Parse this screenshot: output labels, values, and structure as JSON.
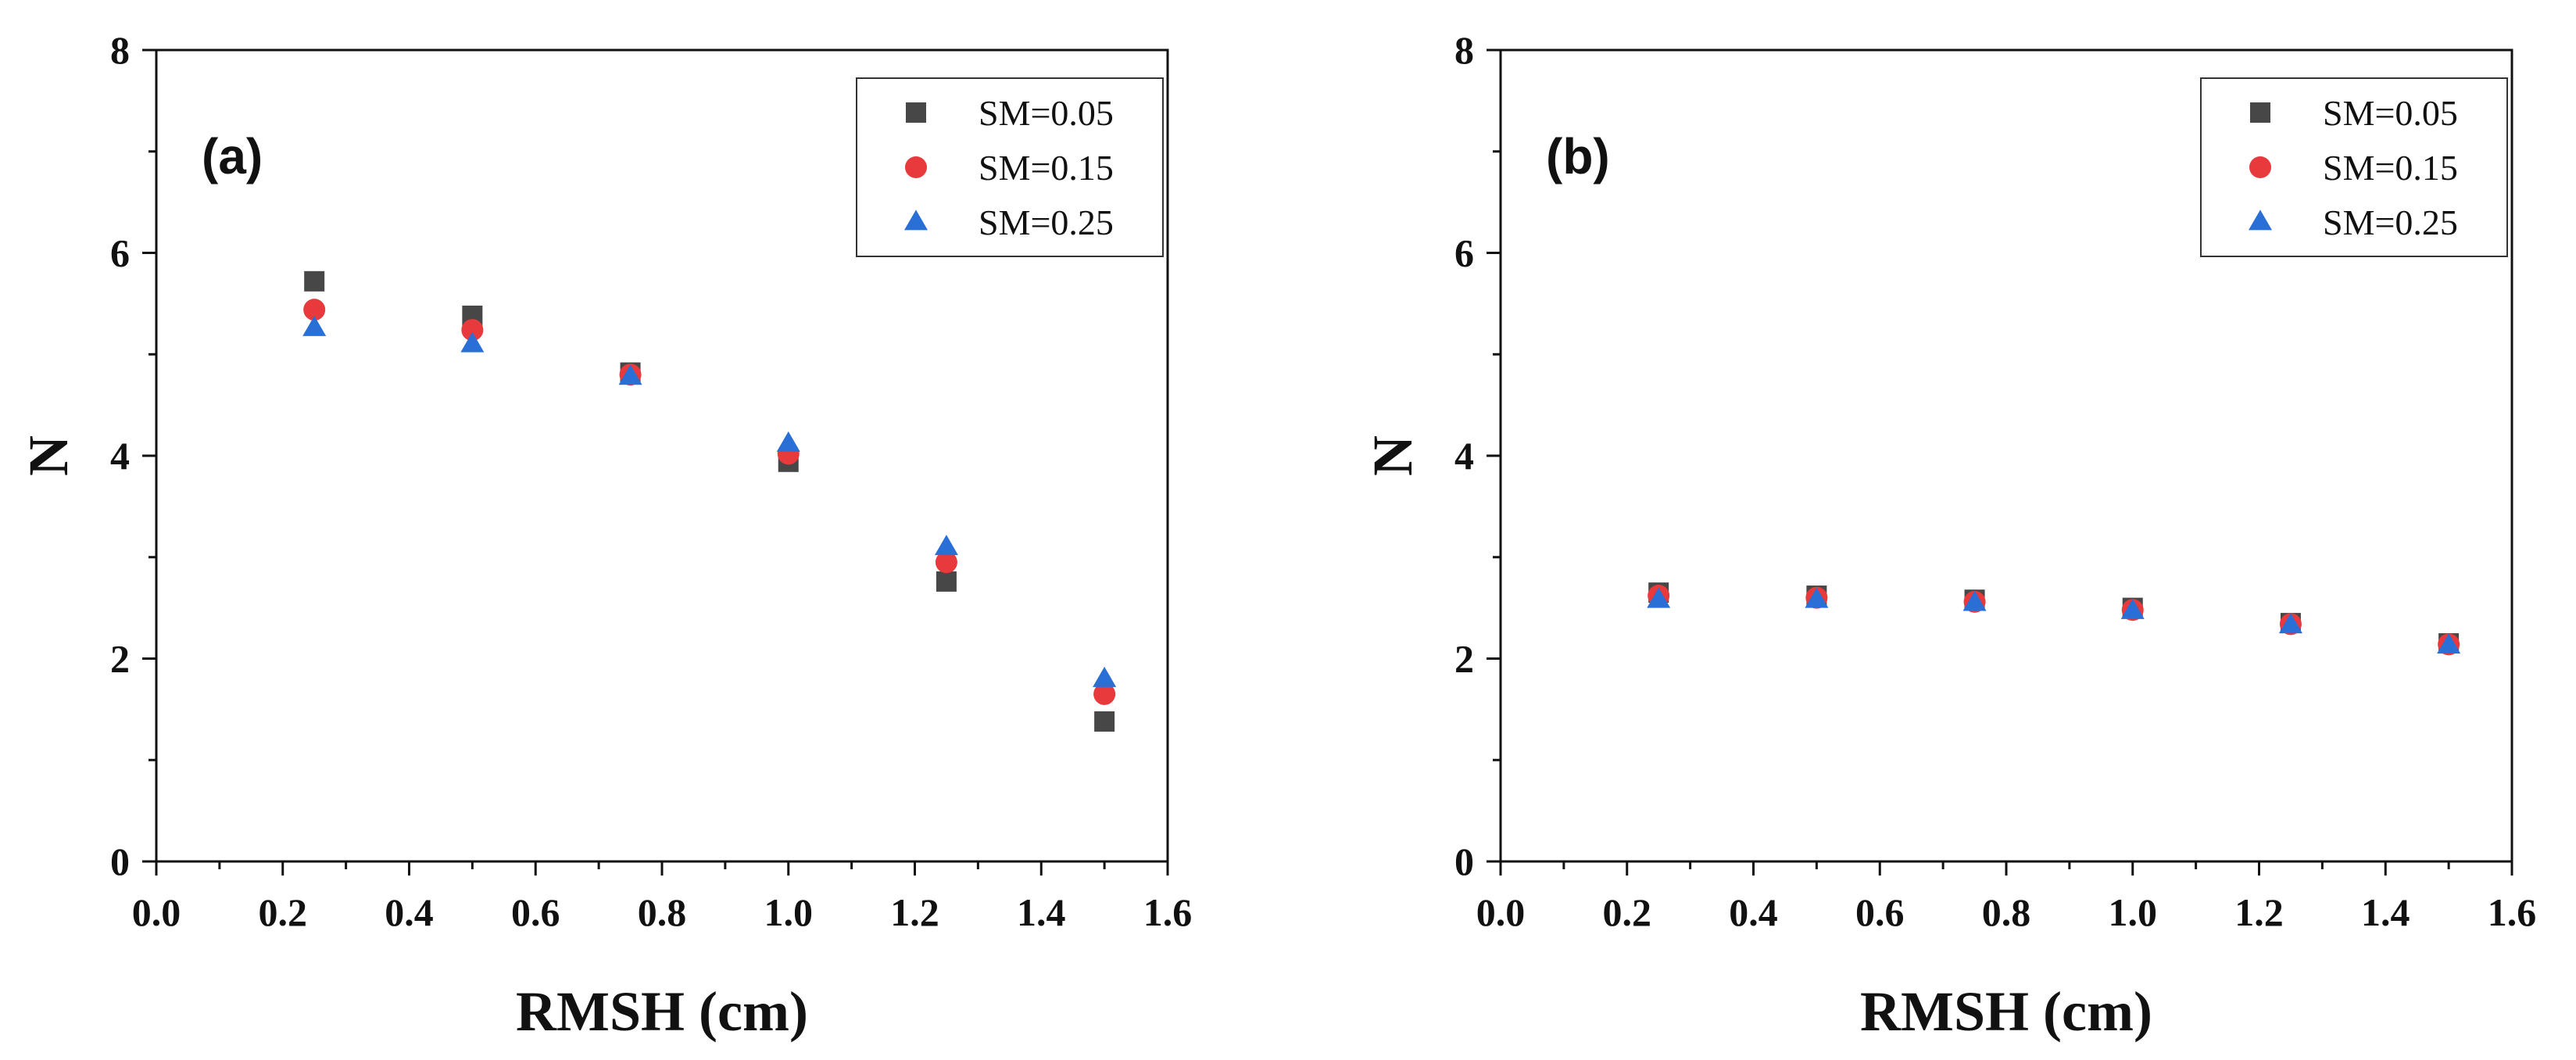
{
  "chart_data": [
    {
      "type": "scatter",
      "panel_label": "(a)",
      "xlabel": "RMSH (cm)",
      "ylabel": "N",
      "xlim": [
        0.0,
        1.6
      ],
      "ylim": [
        0,
        8
      ],
      "x_ticks": [
        0.0,
        0.2,
        0.4,
        0.6,
        0.8,
        1.0,
        1.2,
        1.4,
        1.6
      ],
      "x_tick_labels": [
        "0.0",
        "0.2",
        "0.4",
        "0.6",
        "0.8",
        "1.0",
        "1.2",
        "1.4",
        "1.6"
      ],
      "y_ticks": [
        0,
        2,
        4,
        6,
        8
      ],
      "y_tick_labels": [
        "0",
        "2",
        "4",
        "6",
        "8"
      ],
      "x": [
        0.25,
        0.5,
        0.75,
        1.0,
        1.25,
        1.5
      ],
      "legend_position": "top-right",
      "series": [
        {
          "name": "SM=0.05",
          "marker": "square",
          "color": "#474747",
          "values": [
            5.72,
            5.38,
            4.82,
            3.94,
            2.76,
            1.38
          ]
        },
        {
          "name": "SM=0.15",
          "marker": "circle",
          "color": "#e8393c",
          "values": [
            5.44,
            5.24,
            4.8,
            4.02,
            2.95,
            1.65
          ]
        },
        {
          "name": "SM=0.25",
          "marker": "triangle",
          "color": "#2a6fd6",
          "values": [
            5.26,
            5.1,
            4.78,
            4.12,
            3.1,
            1.8
          ]
        }
      ]
    },
    {
      "type": "scatter",
      "panel_label": "(b)",
      "xlabel": "RMSH (cm)",
      "ylabel": "N",
      "xlim": [
        0.0,
        1.6
      ],
      "ylim": [
        0,
        8
      ],
      "x_ticks": [
        0.0,
        0.2,
        0.4,
        0.6,
        0.8,
        1.0,
        1.2,
        1.4,
        1.6
      ],
      "x_tick_labels": [
        "0.0",
        "0.2",
        "0.4",
        "0.6",
        "0.8",
        "1.0",
        "1.2",
        "1.4",
        "1.6"
      ],
      "y_ticks": [
        0,
        2,
        4,
        6,
        8
      ],
      "y_tick_labels": [
        "0",
        "2",
        "4",
        "6",
        "8"
      ],
      "x": [
        0.25,
        0.5,
        0.75,
        1.0,
        1.25,
        1.5
      ],
      "legend_position": "top-right",
      "series": [
        {
          "name": "SM=0.05",
          "marker": "square",
          "color": "#474747",
          "values": [
            2.65,
            2.62,
            2.58,
            2.5,
            2.35,
            2.15
          ]
        },
        {
          "name": "SM=0.15",
          "marker": "circle",
          "color": "#e8393c",
          "values": [
            2.62,
            2.6,
            2.56,
            2.48,
            2.34,
            2.14
          ]
        },
        {
          "name": "SM=0.25",
          "marker": "triangle",
          "color": "#2a6fd6",
          "values": [
            2.58,
            2.58,
            2.55,
            2.47,
            2.33,
            2.13
          ]
        }
      ]
    }
  ]
}
